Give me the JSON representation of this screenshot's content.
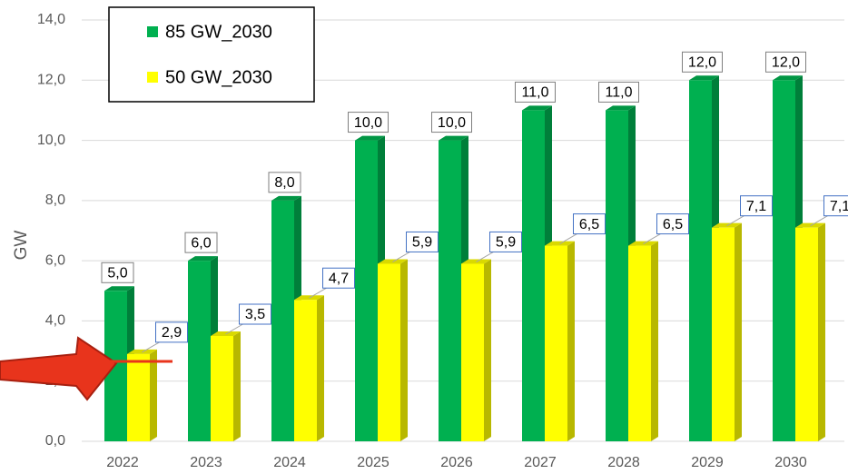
{
  "chart_data": {
    "type": "bar3d",
    "categories": [
      "2022",
      "2023",
      "2024",
      "2025",
      "2026",
      "2027",
      "2028",
      "2029",
      "2030"
    ],
    "series": [
      {
        "name": "85 GW_2030",
        "color": "#00b050",
        "values": [
          5,
          6,
          8,
          10,
          10,
          11,
          11,
          12,
          12
        ],
        "value_labels": [
          "5,0",
          "6,0",
          "8,0",
          "10,0",
          "10,0",
          "11,0",
          "11,0",
          "12,0",
          "12,0"
        ]
      },
      {
        "name": "50 GW_2030",
        "color": "#ffff00",
        "values": [
          2.9,
          3.5,
          4.7,
          5.9,
          5.9,
          6.5,
          6.5,
          7.1,
          7.1
        ],
        "value_labels": [
          "2,9",
          "3,5",
          "4,7",
          "5,9",
          "5,9",
          "6,5",
          "6,5",
          "7,1",
          "7,1"
        ]
      }
    ],
    "ylabel": "GW",
    "ylim": [
      0,
      14
    ],
    "yticks": [
      {
        "value": 0,
        "label": "0,0"
      },
      {
        "value": 2,
        "label": "2,0"
      },
      {
        "value": 4,
        "label": "4,0"
      },
      {
        "value": 6,
        "label": "6,0"
      },
      {
        "value": 8,
        "label": "8,0"
      },
      {
        "value": 10,
        "label": "10,0"
      },
      {
        "value": 12,
        "label": "12,0"
      },
      {
        "value": 14,
        "label": "14,0"
      }
    ],
    "grid": true,
    "legend": "upper left"
  }
}
